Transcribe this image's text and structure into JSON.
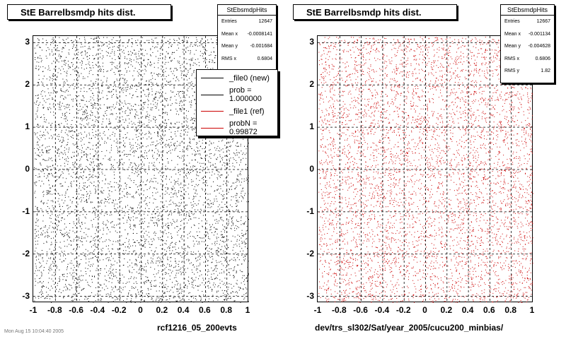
{
  "panels": [
    {
      "title": "StE Barrelbsmdp hits dist.",
      "xlabel": "rcf1216_05_200evts",
      "color": "#000000",
      "stats": {
        "name": "StEbsmdpHits",
        "rows": [
          {
            "label": "Entries",
            "value": "12647"
          },
          {
            "label": "Mean x",
            "value": "-0.0008141"
          },
          {
            "label": "Mean y",
            "value": "-0.001684"
          },
          {
            "label": "RMS x",
            "value": "0.6804"
          },
          {
            "label": "RMS y",
            "value": ""
          }
        ]
      },
      "legend": [
        {
          "label": "_file0 (new)",
          "color": "#000000"
        },
        {
          "label": "prob = 1.000000",
          "color": "#000000"
        },
        {
          "label": "_file1 (ref)",
          "color": "#cc0000"
        },
        {
          "label": "probN = 0.99872",
          "color": "#cc0000"
        }
      ]
    },
    {
      "title": "StE Barrelbsmdp hits dist.",
      "xlabel": "dev/trs_sl302/Sat/year_2005/cucu200_minbias/",
      "color": "#cc0000",
      "stats": {
        "name": "StEbsmdpHits",
        "rows": [
          {
            "label": "Entries",
            "value": "12667"
          },
          {
            "label": "Mean x",
            "value": "-0.001134"
          },
          {
            "label": "Mean y",
            "value": "-0.004628"
          },
          {
            "label": "RMS x",
            "value": "0.6806"
          },
          {
            "label": "RMS y",
            "value": "1.82"
          }
        ]
      }
    }
  ],
  "footer": "Mon Aug 15 10:04:40 2005",
  "chart_data": [
    {
      "type": "scatter",
      "title": "StE Barrelbsmdp hits dist.",
      "xlabel": "rcf1216_05_200evts",
      "xlim": [
        -1,
        1
      ],
      "ylim": [
        -3.14,
        3.14
      ],
      "xticks": [
        "-1",
        "-0.8",
        "-0.6",
        "-0.4",
        "-0.2",
        "0",
        "0.2",
        "0.4",
        "0.6",
        "0.8",
        "1"
      ],
      "yticks": [
        "3",
        "2",
        "1",
        "0",
        "-1",
        "-2",
        "-3"
      ],
      "distribution": "approximately uniform",
      "entries": 12647,
      "color": "#000000",
      "grid": true
    },
    {
      "type": "scatter",
      "title": "StE Barrelbsmdp hits dist.",
      "xlabel": "dev/trs_sl302/Sat/year_2005/cucu200_minbias/",
      "xlim": [
        -1,
        1
      ],
      "ylim": [
        -3.14,
        3.14
      ],
      "xticks": [
        "-1",
        "-0.8",
        "-0.6",
        "-0.4",
        "-0.2",
        "0",
        "0.2",
        "0.4",
        "0.6",
        "0.8",
        "1"
      ],
      "yticks": [
        "3",
        "2",
        "1",
        "0",
        "-1",
        "-2",
        "-3"
      ],
      "distribution": "approximately uniform",
      "entries": 12667,
      "color": "#cc0000",
      "grid": true
    }
  ]
}
